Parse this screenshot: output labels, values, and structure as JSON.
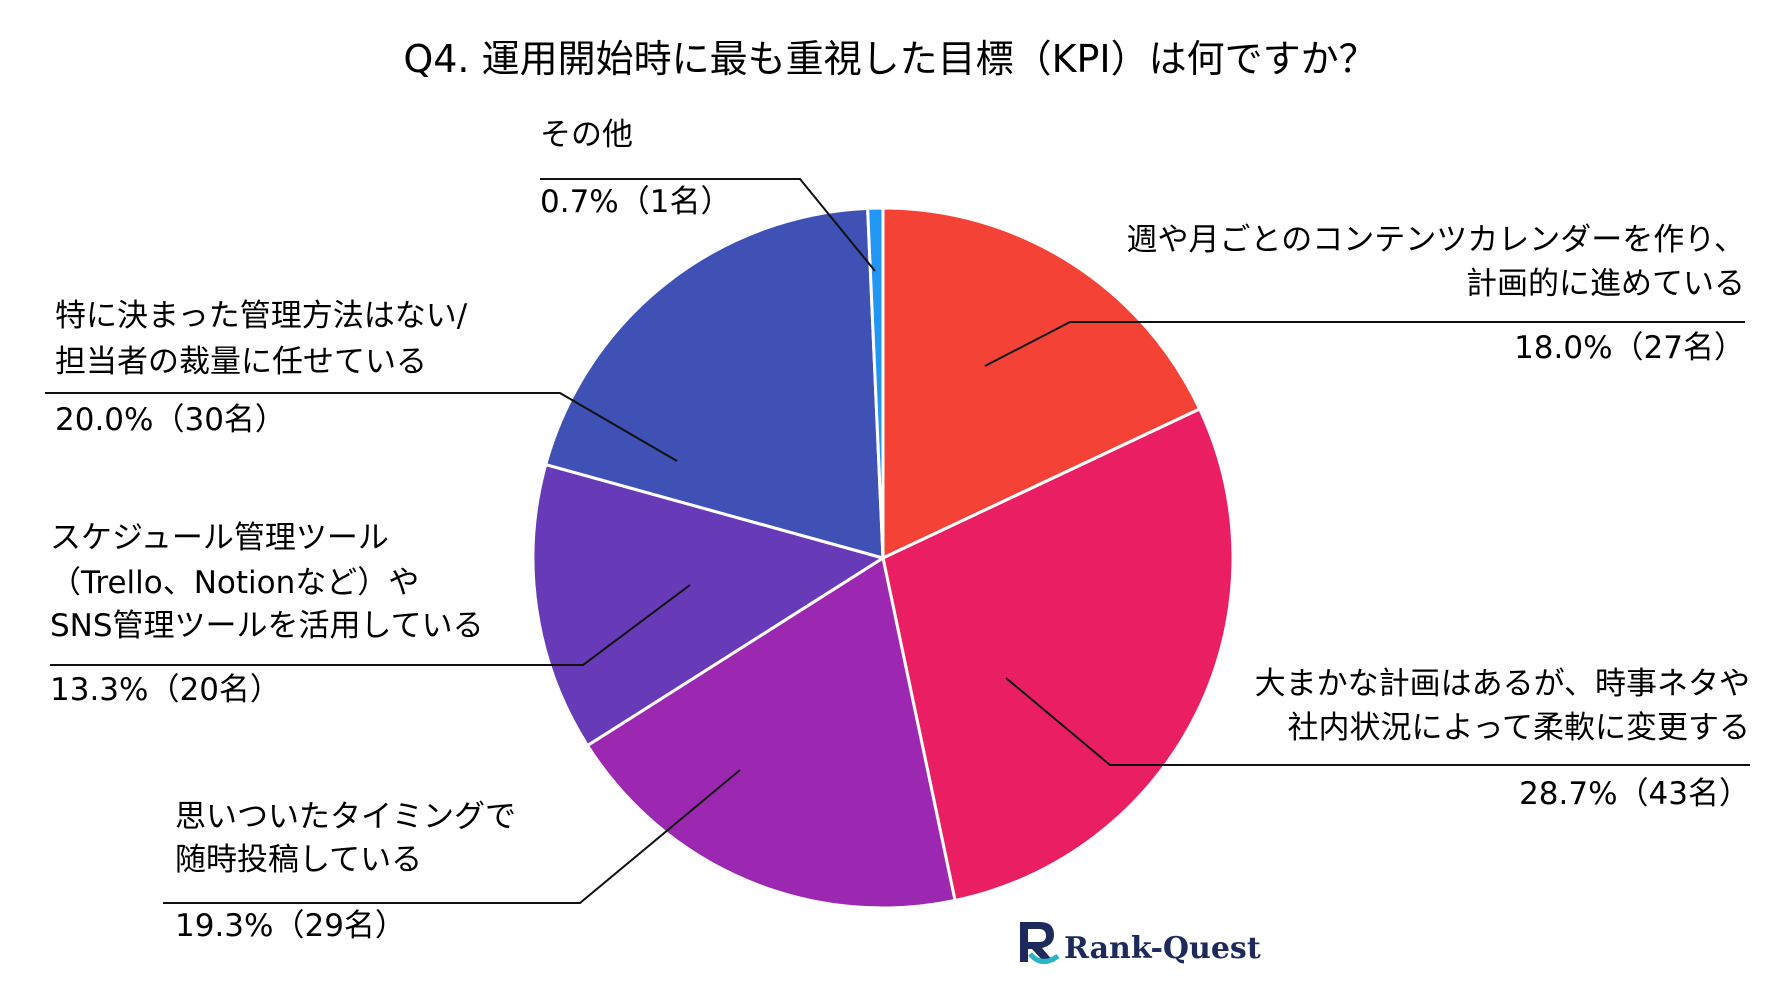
{
  "chart_data": {
    "type": "pie",
    "title": "Q4. 運用開始時に最も重視した目標（KPI）は何ですか？",
    "slices": [
      {
        "label_lines": [
          "週や月ごとのコンテンツカレンダーを作り、",
          "計画的に進めている"
        ],
        "value": 18.0,
        "count": 27,
        "value_text": "18.0%（27名）",
        "color": "#f44336"
      },
      {
        "label_lines": [
          "大まかな計画はあるが、時事ネタや",
          "社内状況によって柔軟に変更する"
        ],
        "value": 28.7,
        "count": 43,
        "value_text": "28.7%（43名）",
        "color": "#e91e63"
      },
      {
        "label_lines": [
          "思いついたタイミングで",
          "随時投稿している"
        ],
        "value": 19.3,
        "count": 29,
        "value_text": "19.3%（29名）",
        "color": "#9c27b0"
      },
      {
        "label_lines": [
          "スケジュール管理ツール",
          "（Trello、Notionなど）や",
          "SNS管理ツールを活用している"
        ],
        "value": 13.3,
        "count": 20,
        "value_text": "13.3%（20名）",
        "color": "#673ab7"
      },
      {
        "label_lines": [
          "特に決まった管理方法はない/",
          "担当者の裁量に任せている"
        ],
        "value": 20.0,
        "count": 30,
        "value_text": "20.0%（30名）",
        "color": "#3f51b5"
      },
      {
        "label_lines": [
          "その他"
        ],
        "value": 0.7,
        "count": 1,
        "value_text": "0.7%（1名）",
        "color": "#2196f3"
      }
    ]
  },
  "brand": {
    "logo_text": "Rank-Quest",
    "logo_color": "#1e2a5c",
    "logo_accent": "#2bb3c8"
  }
}
